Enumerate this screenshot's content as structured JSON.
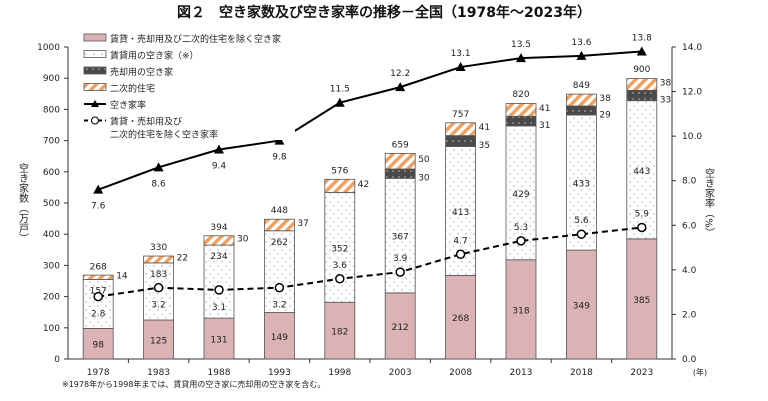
{
  "chart_data": {
    "type": "bar",
    "title": "図２　空き家数及び空き家率の推移－全国（1978年～2023年）",
    "categories": [
      "1978",
      "1983",
      "1988",
      "1993",
      "1998",
      "2003",
      "2008",
      "2013",
      "2018",
      "2023"
    ],
    "ylabel": "空き家数（万戸）",
    "y2label": "空き家率（%）",
    "xunit": "(年)",
    "ylim": [
      0,
      1000
    ],
    "y2lim": [
      0,
      14
    ],
    "yticks": [
      "0",
      "100",
      "200",
      "300",
      "400",
      "500",
      "600",
      "700",
      "800",
      "900",
      "1000"
    ],
    "y2ticks": [
      "0.0",
      "2.0",
      "4.0",
      "6.0",
      "8.0",
      "10.0",
      "12.0",
      "14.0"
    ],
    "legend_position": "top-left",
    "series": [
      {
        "name": "賃貸・売却用及び二次的住宅を除く空き家",
        "kind": "bar",
        "color": "#dbb3b5",
        "values": [
          98,
          125,
          131,
          149,
          182,
          212,
          268,
          318,
          349,
          385
        ]
      },
      {
        "name": "賃貸用の空き家（※）",
        "kind": "bar",
        "color": "#ffffff",
        "values": [
          157,
          183,
          234,
          262,
          352,
          367,
          413,
          429,
          433,
          443
        ]
      },
      {
        "name": "売却用の空き家",
        "kind": "bar",
        "color": "#4a4a4a",
        "values": [
          null,
          null,
          null,
          null,
          null,
          30,
          35,
          31,
          29,
          33
        ]
      },
      {
        "name": "二次的住宅",
        "kind": "bar",
        "color": "#f0a060",
        "values": [
          14,
          22,
          30,
          37,
          42,
          50,
          41,
          41,
          38,
          38
        ]
      },
      {
        "name": "空き家率",
        "kind": "line",
        "axis": "right",
        "values": [
          7.6,
          8.6,
          9.4,
          9.8,
          11.5,
          12.2,
          13.1,
          13.5,
          13.6,
          13.8
        ]
      },
      {
        "name": "賃貸・売却用及び\n二次的住宅を除く空き家率",
        "kind": "line-dashed",
        "axis": "right",
        "values": [
          2.8,
          3.2,
          3.1,
          3.2,
          3.6,
          3.9,
          4.7,
          5.3,
          5.6,
          5.9
        ]
      }
    ],
    "totals": [
      268,
      330,
      394,
      448,
      576,
      659,
      757,
      820,
      849,
      900
    ],
    "footnote": "※1978年から1998年までは、賃貸用の空き家に売却用の空き家を含む。"
  }
}
